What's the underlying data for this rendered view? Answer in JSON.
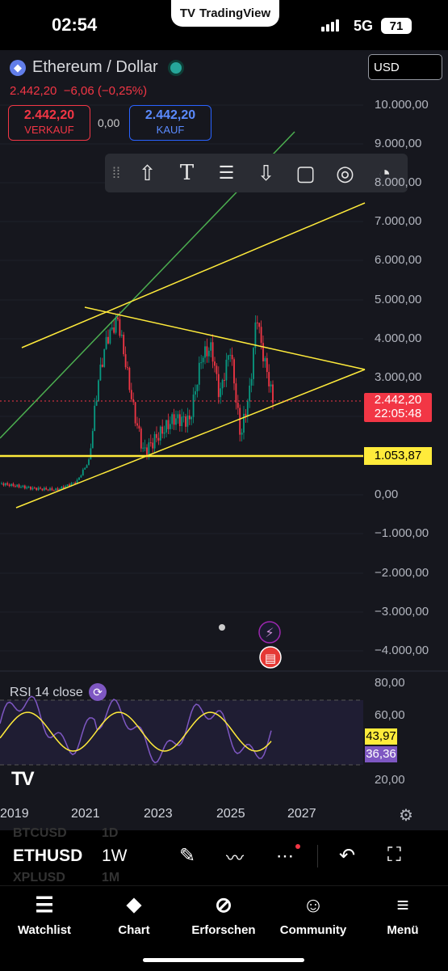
{
  "status": {
    "time": "02:54",
    "network": "5G",
    "battery": "71"
  },
  "brand": {
    "name": "TradingView"
  },
  "symbol": {
    "title": "Ethereum / Dollar",
    "price": "2.442,20",
    "change": "−6,06 (−0,25%)"
  },
  "trade": {
    "sell_price": "2.442,20",
    "sell_label": "VERKAUF",
    "spread": "0,00",
    "buy_price": "2.442,20",
    "buy_label": "KAUF"
  },
  "currency": "USD",
  "y_axis": [
    "10.000,00",
    "9.000,00",
    "8.000,00",
    "7.000,00",
    "6.000,00",
    "5.000,00",
    "4.000,00",
    "3.000,00",
    "0,00",
    "−1.000,00",
    "−2.000,00",
    "−3.000,00",
    "−4.000,00"
  ],
  "price_tag": {
    "price": "2.442,20",
    "countdown": "22:05:48"
  },
  "line_tag": "1.053,87",
  "rsi": {
    "label": "RSI 14 close",
    "axis": [
      "80,00",
      "60,00",
      "20,00"
    ],
    "value_ma": "43,97",
    "value_rsi": "36,36"
  },
  "x_axis": [
    "2019",
    "2021",
    "2023",
    "2025",
    "2027"
  ],
  "controls": {
    "symbol_above": "BTCUSD",
    "tf_above": "1D",
    "symbol": "ETHUSD",
    "timeframe": "1W",
    "symbol_below": "XPLUSD",
    "tf_below": "1M"
  },
  "nav": [
    {
      "label": "Watchlist",
      "icon": "watchlist-icon"
    },
    {
      "label": "Chart",
      "icon": "chart-icon"
    },
    {
      "label": "Erforschen",
      "icon": "compass-icon"
    },
    {
      "label": "Community",
      "icon": "community-icon"
    },
    {
      "label": "Menü",
      "icon": "menu-icon"
    }
  ],
  "colors": {
    "up": "#089981",
    "down": "#f23645",
    "trendline": "#ffeb3b",
    "green_line": "#4caf50",
    "rsi": "#7e57c2",
    "rsi_ma": "#ffeb3b"
  }
}
